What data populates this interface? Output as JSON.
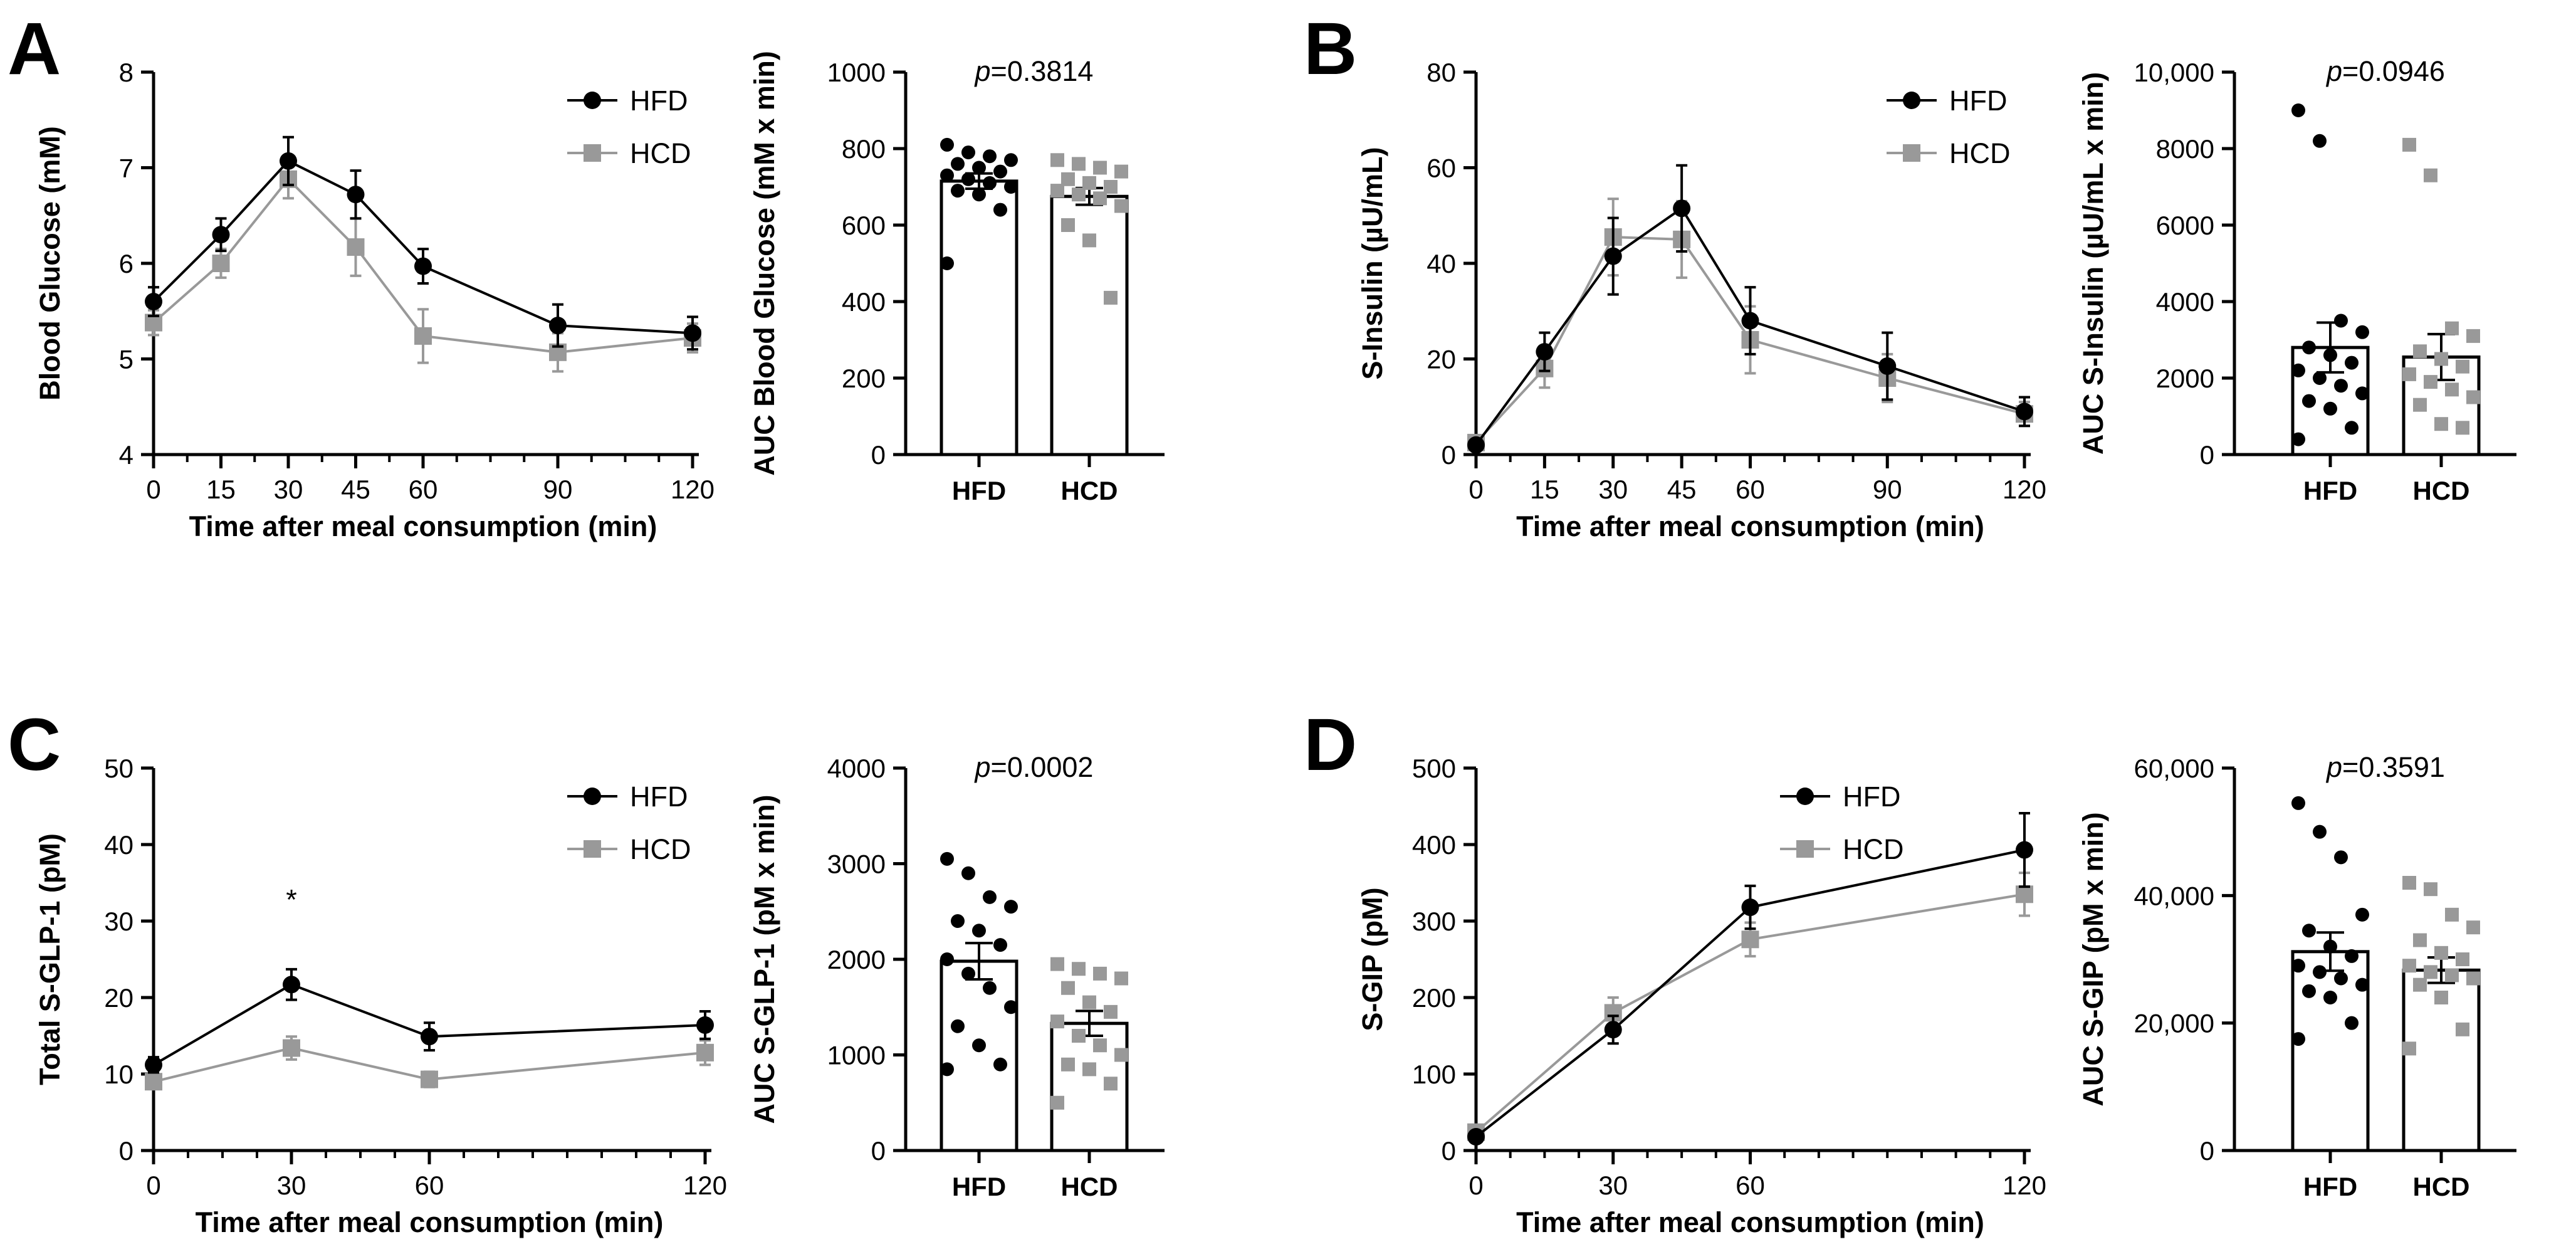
{
  "colors": {
    "hfd": "#000000",
    "hcd": "#999999",
    "axis": "#000000",
    "bar_fill": "#ffffff"
  },
  "panels": [
    {
      "id": "A",
      "letter": "A",
      "legend": [
        "HFD",
        "HCD"
      ],
      "line": {
        "xlabel": "Time after meal consumption (min)",
        "ylabel": "Blood Glucose (mM)",
        "xlim": [
          0,
          120
        ],
        "ylim": [
          4,
          8
        ],
        "xticks": [
          0,
          15,
          30,
          45,
          60,
          90,
          120
        ],
        "xtick_labels": [
          "0",
          "15",
          "30",
          "45",
          "60",
          "90",
          "120"
        ],
        "yticks": [
          4,
          5,
          6,
          7,
          8
        ],
        "ytick_labels": [
          "4",
          "5",
          "6",
          "7",
          "8"
        ]
      },
      "bar": {
        "ylabel": "AUC Blood Glucose (mM x min)",
        "ylim": [
          0,
          1000
        ],
        "yticks": [
          0,
          200,
          400,
          600,
          800,
          1000
        ],
        "ytick_labels": [
          "0",
          "200",
          "400",
          "600",
          "800",
          "1000"
        ],
        "categories": [
          "HFD",
          "HCD"
        ],
        "p_prefix": "p",
        "p_value": "=0.3814"
      }
    },
    {
      "id": "B",
      "letter": "B",
      "legend": [
        "HFD",
        "HCD"
      ],
      "line": {
        "xlabel": "Time after meal consumption (min)",
        "ylabel": "S-Insulin (µU/mL)",
        "xlim": [
          0,
          120
        ],
        "ylim": [
          0,
          80
        ],
        "xticks": [
          0,
          15,
          30,
          45,
          60,
          90,
          120
        ],
        "xtick_labels": [
          "0",
          "15",
          "30",
          "45",
          "60",
          "90",
          "120"
        ],
        "yticks": [
          0,
          20,
          40,
          60,
          80
        ],
        "ytick_labels": [
          "0",
          "20",
          "40",
          "60",
          "80"
        ]
      },
      "bar": {
        "ylabel": "AUC S-Insulin (µU/mL x min)",
        "ylim": [
          0,
          10000
        ],
        "yticks": [
          0,
          2000,
          4000,
          6000,
          8000,
          10000
        ],
        "ytick_labels": [
          "0",
          "2000",
          "4000",
          "6000",
          "8000",
          "10,000"
        ],
        "categories": [
          "HFD",
          "HCD"
        ],
        "p_prefix": "p",
        "p_value": "=0.0946"
      }
    },
    {
      "id": "C",
      "letter": "C",
      "legend": [
        "HFD",
        "HCD"
      ],
      "line": {
        "xlabel": "Time after meal consumption (min)",
        "ylabel": "Total S-GLP-1 (pM)",
        "xlim": [
          0,
          120
        ],
        "ylim": [
          0,
          50
        ],
        "xticks": [
          0,
          30,
          60,
          120
        ],
        "xtick_labels": [
          "0",
          "30",
          "60",
          "120"
        ],
        "yticks": [
          0,
          10,
          20,
          30,
          40,
          50
        ],
        "ytick_labels": [
          "0",
          "10",
          "20",
          "30",
          "40",
          "50"
        ],
        "annotation": "*",
        "annotation_x": 30,
        "annotation_y": 31.5
      },
      "bar": {
        "ylabel": "AUC S-GLP-1 (pM x min)",
        "ylim": [
          0,
          4000
        ],
        "yticks": [
          0,
          1000,
          2000,
          3000,
          4000
        ],
        "ytick_labels": [
          "0",
          "1000",
          "2000",
          "3000",
          "4000"
        ],
        "categories": [
          "HFD",
          "HCD"
        ],
        "p_prefix": "p",
        "p_value": "=0.0002"
      }
    },
    {
      "id": "D",
      "letter": "D",
      "legend": [
        "HFD",
        "HCD"
      ],
      "line": {
        "xlabel": "Time after meal consumption (min)",
        "ylabel": "S-GIP (pM)",
        "xlim": [
          0,
          120
        ],
        "ylim": [
          0,
          500
        ],
        "xticks": [
          0,
          30,
          60,
          120
        ],
        "xtick_labels": [
          "0",
          "30",
          "60",
          "120"
        ],
        "yticks": [
          0,
          100,
          200,
          300,
          400,
          500
        ],
        "ytick_labels": [
          "0",
          "100",
          "200",
          "300",
          "400",
          "500"
        ]
      },
      "bar": {
        "ylabel": "AUC S-GIP (pM x min)",
        "ylim": [
          0,
          60000
        ],
        "yticks": [
          0,
          20000,
          40000,
          60000
        ],
        "ytick_labels": [
          "0",
          "20,000",
          "40,000",
          "60,000"
        ],
        "categories": [
          "HFD",
          "HCD"
        ],
        "p_prefix": "p",
        "p_value": "=0.3591"
      }
    }
  ],
  "chart_data": [
    {
      "panel": "A",
      "type": "line",
      "xlabel": "Time after meal consumption (min)",
      "ylabel": "Blood Glucose (mM)",
      "xlim": [
        0,
        120
      ],
      "ylim": [
        4,
        8
      ],
      "series": [
        {
          "name": "HFD",
          "x": [
            0,
            15,
            30,
            45,
            60,
            90,
            120
          ],
          "y": [
            5.6,
            6.3,
            7.07,
            6.72,
            5.97,
            5.35,
            5.27
          ],
          "err": [
            0.15,
            0.17,
            0.25,
            0.25,
            0.18,
            0.22,
            0.17
          ]
        },
        {
          "name": "HCD",
          "x": [
            0,
            15,
            30,
            45,
            60,
            90,
            120
          ],
          "y": [
            5.38,
            6.0,
            6.88,
            6.17,
            5.24,
            5.07,
            5.22
          ],
          "err": [
            0.13,
            0.15,
            0.2,
            0.3,
            0.28,
            0.2,
            0.15
          ]
        }
      ]
    },
    {
      "panel": "A",
      "type": "bar",
      "ylabel": "AUC Blood Glucose (mM x min)",
      "ylim": [
        0,
        1000
      ],
      "categories": [
        "HFD",
        "HCD"
      ],
      "means": [
        715,
        675
      ],
      "sem": [
        20,
        22
      ],
      "points": [
        [
          810,
          790,
          780,
          770,
          760,
          750,
          740,
          730,
          720,
          710,
          700,
          690,
          680,
          640,
          500
        ],
        [
          770,
          760,
          750,
          740,
          720,
          710,
          700,
          690,
          680,
          670,
          650,
          600,
          560,
          410
        ]
      ],
      "annotation": "p=0.3814"
    },
    {
      "panel": "B",
      "type": "line",
      "xlabel": "Time after meal consumption (min)",
      "ylabel": "S-Insulin (µU/mL)",
      "xlim": [
        0,
        120
      ],
      "ylim": [
        0,
        80
      ],
      "series": [
        {
          "name": "HFD",
          "x": [
            0,
            15,
            30,
            45,
            60,
            90,
            120
          ],
          "y": [
            2,
            21.5,
            41.5,
            51.5,
            28,
            18.5,
            9
          ],
          "err": [
            1,
            4,
            8,
            9,
            7,
            7,
            3
          ]
        },
        {
          "name": "HCD",
          "x": [
            0,
            15,
            30,
            45,
            60,
            90,
            120
          ],
          "y": [
            2.5,
            18,
            45.5,
            45,
            24,
            16,
            8.5
          ],
          "err": [
            1,
            4,
            8,
            8,
            7,
            5,
            2.5
          ]
        }
      ]
    },
    {
      "panel": "B",
      "type": "bar",
      "ylabel": "AUC S-Insulin (µU/mL x min)",
      "ylim": [
        0,
        10000
      ],
      "categories": [
        "HFD",
        "HCD"
      ],
      "means": [
        2800,
        2550
      ],
      "sem": [
        650,
        600
      ],
      "points": [
        [
          9000,
          8200,
          3500,
          3200,
          2800,
          2600,
          2400,
          2200,
          2000,
          1800,
          1600,
          1400,
          1200,
          700,
          400
        ],
        [
          8100,
          7300,
          3300,
          3100,
          2700,
          2500,
          2300,
          2100,
          1900,
          1700,
          1500,
          1300,
          800,
          700
        ]
      ],
      "annotation": "p=0.0946"
    },
    {
      "panel": "C",
      "type": "line",
      "xlabel": "Time after meal consumption (min)",
      "ylabel": "Total S-GLP-1 (pM)",
      "xlim": [
        0,
        120
      ],
      "ylim": [
        0,
        50
      ],
      "series": [
        {
          "name": "HFD",
          "x": [
            0,
            30,
            60,
            120
          ],
          "y": [
            11.2,
            21.7,
            14.9,
            16.4
          ],
          "err": [
            1.0,
            2.0,
            1.8,
            1.8
          ]
        },
        {
          "name": "HCD",
          "x": [
            0,
            30,
            60,
            120
          ],
          "y": [
            9.0,
            13.4,
            9.3,
            12.8
          ],
          "err": [
            0.8,
            1.5,
            1.0,
            1.6
          ]
        }
      ],
      "annotations": [
        "*"
      ]
    },
    {
      "panel": "C",
      "type": "bar",
      "ylabel": "AUC S-GLP-1 (pM x min)",
      "ylim": [
        0,
        4000
      ],
      "categories": [
        "HFD",
        "HCD"
      ],
      "means": [
        1980,
        1330
      ],
      "sem": [
        190,
        130
      ],
      "points": [
        [
          3050,
          2900,
          2650,
          2550,
          2400,
          2300,
          2150,
          2000,
          1850,
          1700,
          1500,
          1300,
          1100,
          900,
          850
        ],
        [
          1950,
          1900,
          1850,
          1800,
          1700,
          1550,
          1450,
          1350,
          1200,
          1100,
          1000,
          900,
          850,
          700,
          500
        ]
      ],
      "annotation": "p=0.0002"
    },
    {
      "panel": "D",
      "type": "line",
      "xlabel": "Time after meal consumption (min)",
      "ylabel": "S-GIP (pM)",
      "xlim": [
        0,
        120
      ],
      "ylim": [
        0,
        500
      ],
      "series": [
        {
          "name": "HFD",
          "x": [
            0,
            30,
            60,
            120
          ],
          "y": [
            18,
            158,
            318,
            393
          ],
          "err": [
            4,
            18,
            28,
            48
          ]
        },
        {
          "name": "HCD",
          "x": [
            0,
            30,
            60,
            120
          ],
          "y": [
            24,
            180,
            276,
            335
          ],
          "err": [
            4,
            20,
            22,
            28
          ]
        }
      ]
    },
    {
      "panel": "D",
      "type": "bar",
      "ylabel": "AUC S-GIP (pM x min)",
      "ylim": [
        0,
        60000
      ],
      "categories": [
        "HFD",
        "HCD"
      ],
      "means": [
        31200,
        28300
      ],
      "sem": [
        3000,
        2000
      ],
      "points": [
        [
          54500,
          50000,
          46000,
          37000,
          34500,
          32000,
          30500,
          29000,
          28000,
          27000,
          26000,
          25000,
          24000,
          20000,
          17500
        ],
        [
          42000,
          41000,
          37000,
          35000,
          33000,
          31000,
          30000,
          29000,
          28000,
          27500,
          27000,
          26000,
          24000,
          19000,
          16000
        ]
      ],
      "annotation": "p=0.3591"
    }
  ]
}
